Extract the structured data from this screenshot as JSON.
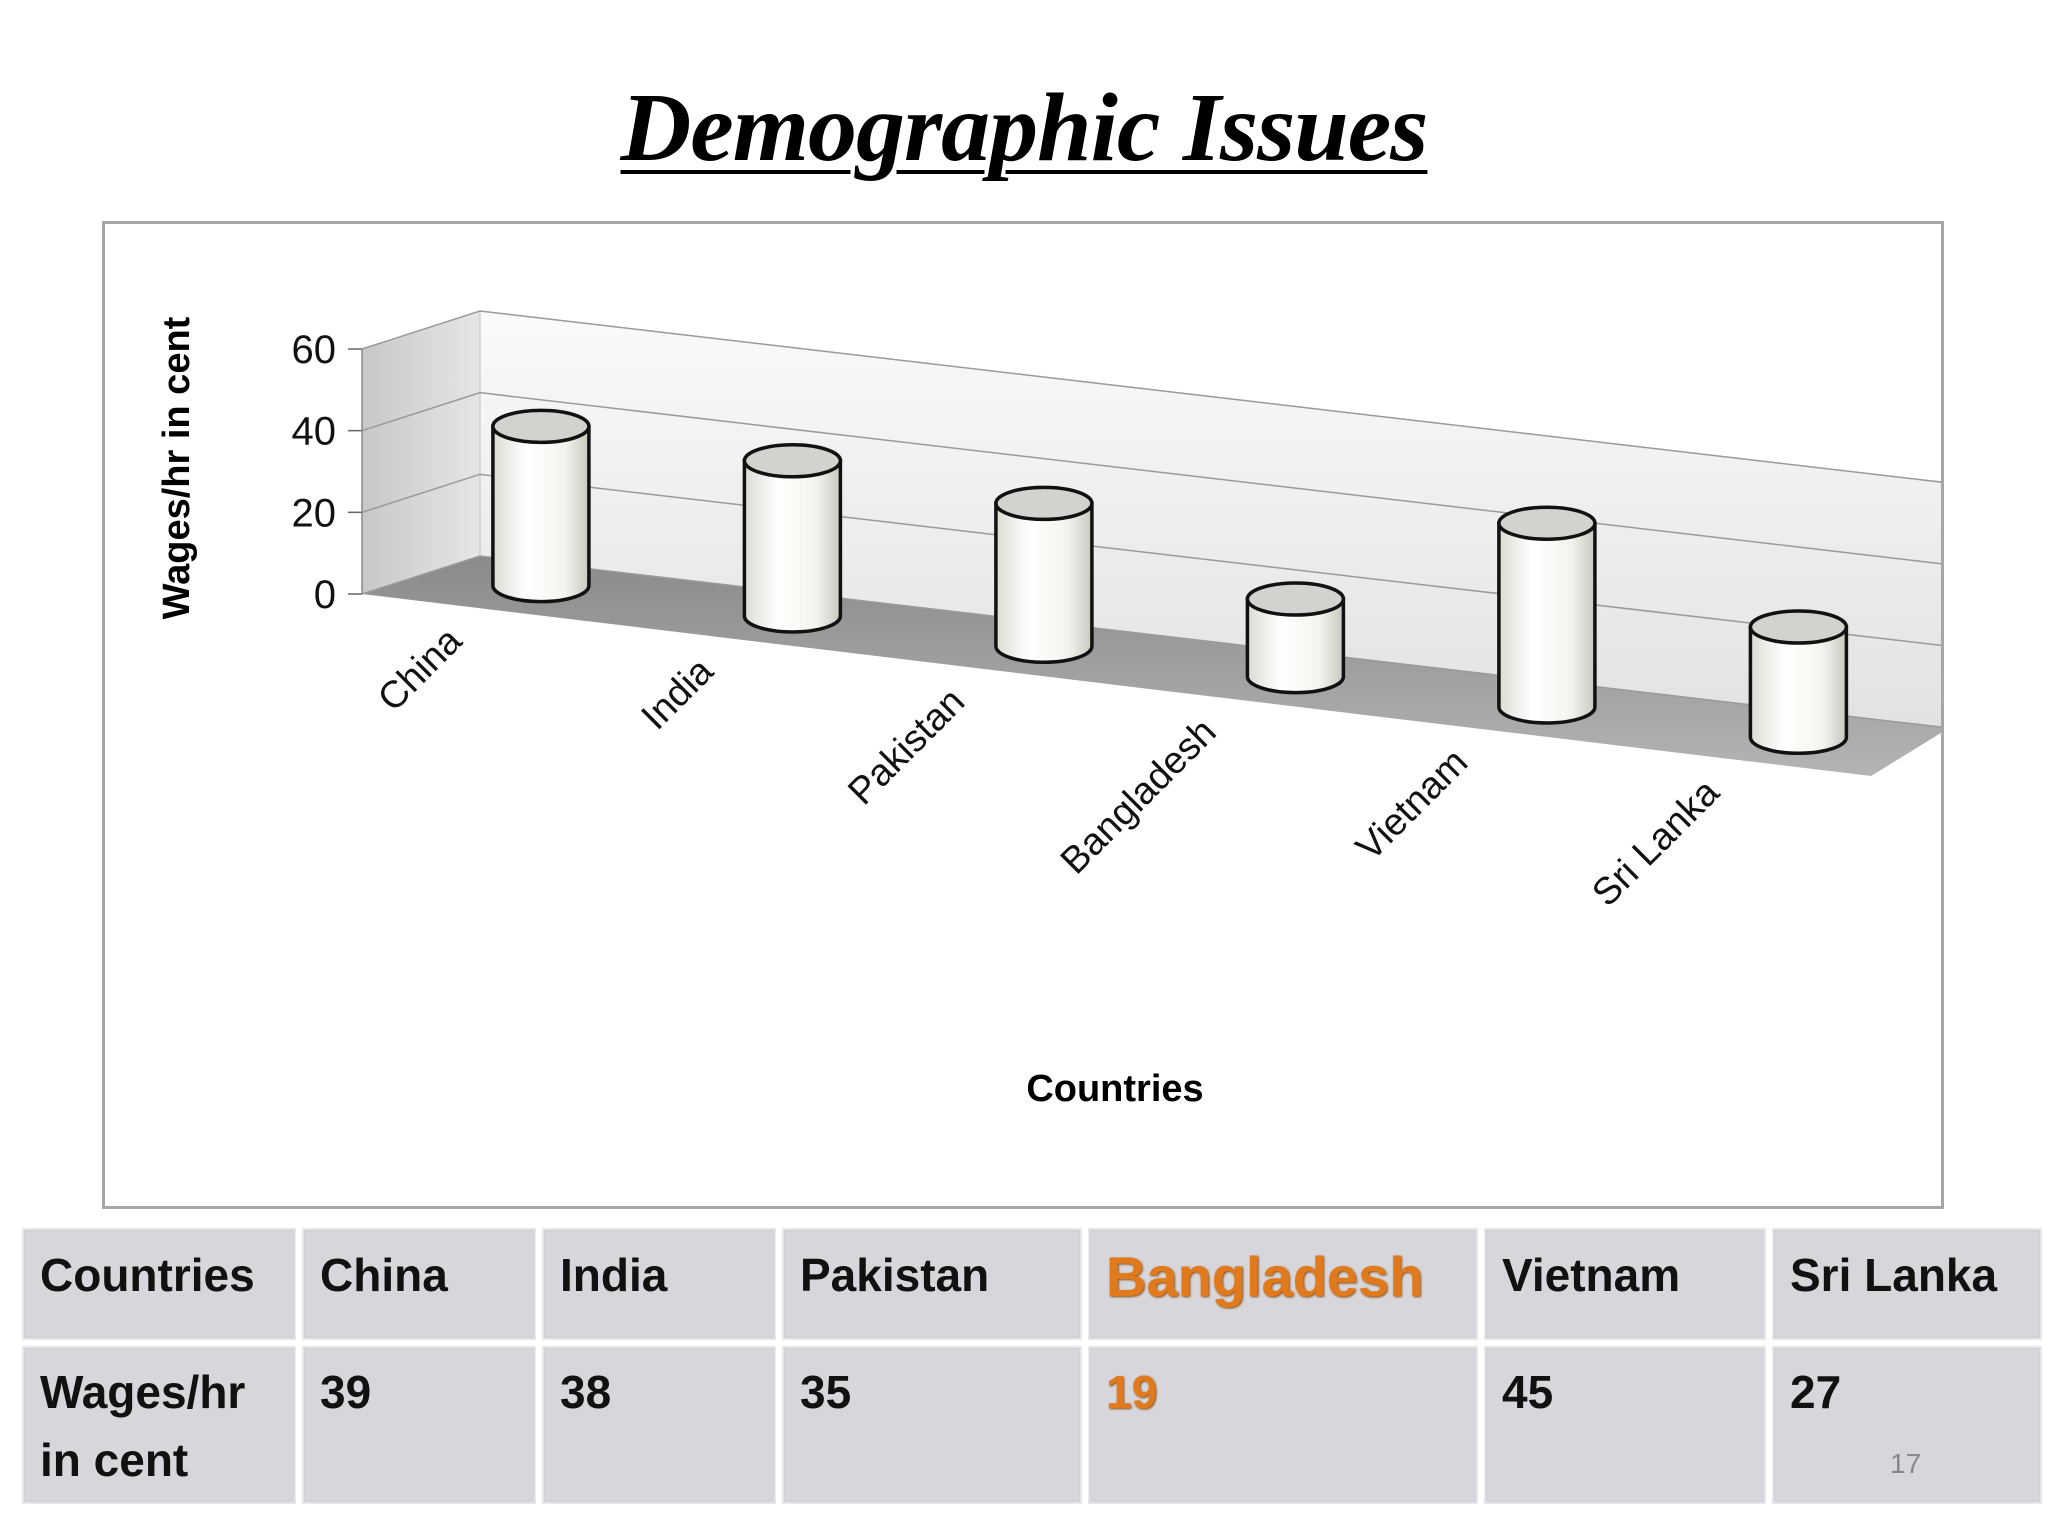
{
  "slide": {
    "title": "Demographic Issues",
    "page_number": "17"
  },
  "chart_data": {
    "type": "bar",
    "style": "3d-cylinder",
    "categories": [
      "China",
      "India",
      "Pakistan",
      "Bangladesh",
      "Vietnam",
      "Sri Lanka"
    ],
    "values": [
      39,
      38,
      35,
      19,
      45,
      27
    ],
    "xlabel": "Countries",
    "ylabel": "Wages/hr in cent",
    "ylim": [
      0,
      60
    ],
    "yticks": [
      "0",
      "20",
      "40",
      "60"
    ],
    "grid": true,
    "legend": "none"
  },
  "table": {
    "header": [
      "Countries",
      "China",
      "India",
      "Pakistan",
      "Bangladesh",
      "Vietnam",
      "Sri Lanka"
    ],
    "row_label": [
      "Wages/hr",
      "in cent"
    ],
    "row_values": [
      "39",
      "38",
      "35",
      "19",
      "45",
      "27"
    ],
    "highlight_column": "Bangladesh",
    "highlight_color": "#e07a1c"
  }
}
